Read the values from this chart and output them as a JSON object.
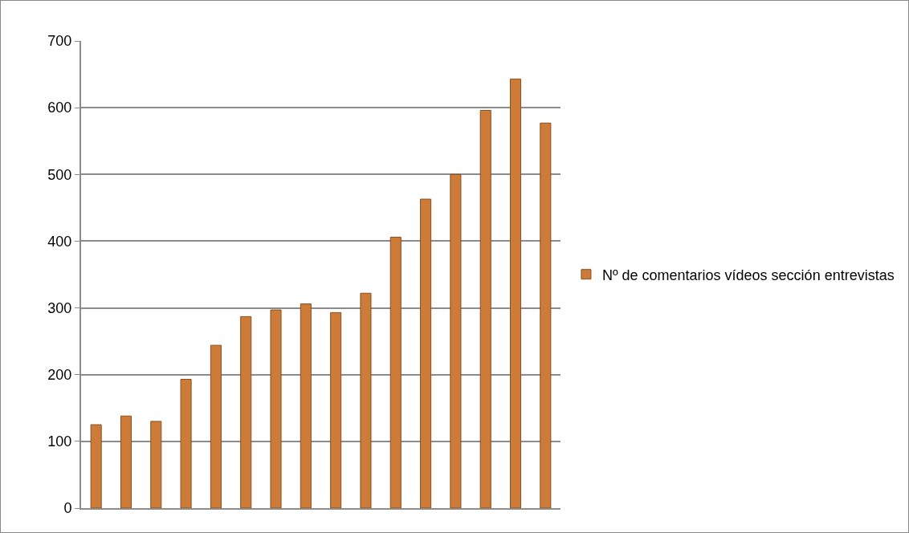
{
  "chart_data": {
    "type": "bar",
    "categories": [
      null,
      null,
      null,
      null,
      null,
      null,
      null,
      null,
      null,
      null,
      null,
      null,
      null,
      null,
      null,
      null
    ],
    "series": [
      {
        "name": "Nº de comentarios vídeos sección entrevistas",
        "color": "#cd7b39",
        "values": [
          125,
          138,
          130,
          193,
          244,
          287,
          297,
          306,
          293,
          322,
          406,
          463,
          500,
          596,
          643,
          577
        ]
      }
    ],
    "ylim": [
      0,
      700
    ],
    "yticks": [
      0,
      100,
      200,
      300,
      400,
      500,
      600,
      700
    ],
    "grid": "y",
    "legend": "right"
  }
}
